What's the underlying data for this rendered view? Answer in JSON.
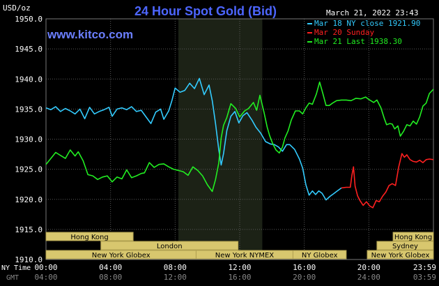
{
  "header": {
    "title": "24 Hour Spot Gold (Bid)",
    "unit": "USD/oz",
    "timestamp": "March 21, 2022 23:43",
    "watermark": "www.kitco.com"
  },
  "legend": [
    {
      "label": "Mar 18 NY close 1921.90",
      "color": "#33ccff"
    },
    {
      "label": "Mar 20 Sunday",
      "color": "#ff2020"
    },
    {
      "label": "Mar 21 Last 1938.30",
      "color": "#22ee22"
    }
  ],
  "markets": [
    {
      "name": "Hong Kong",
      "start": 0,
      "end": 5.4
    },
    {
      "name": "London",
      "start": 3.4,
      "end": 11.9
    },
    {
      "name": "New York Globex",
      "start": 0,
      "end": 9.3
    },
    {
      "name": "New York NYMEX",
      "start": 9.3,
      "end": 15.3
    },
    {
      "name": "NY Globex",
      "start": 15.3,
      "end": 18.6
    },
    {
      "name": "Hong Kong",
      "start": 21.5,
      "end": 24
    },
    {
      "name": "Sydney",
      "start": 20.5,
      "end": 24
    },
    {
      "name": "New York Globex",
      "start": 19.9,
      "end": 24
    }
  ],
  "axis_labels": {
    "ny_time": "NY Time",
    "gmt": "GMT"
  },
  "colors": {
    "background": "#000000",
    "plot_background": "#000000",
    "grid": "#5a5a5a",
    "nymex_shade": "#1c2216",
    "title": "#4d66ff",
    "watermark": "#6b7fff",
    "text": "#ffffff",
    "market_bar": "#d8c76e",
    "market_bar_border": "#b0a050"
  },
  "chart_data": {
    "type": "line",
    "title": "24 Hour Spot Gold (Bid)",
    "ylabel": "USD/oz",
    "xlim": [
      0,
      24
    ],
    "ylim": [
      1910,
      1950
    ],
    "y_ticks": [
      "1950.0",
      "1945.0",
      "1940.0",
      "1935.0",
      "1930.0",
      "1925.0",
      "1920.0",
      "1915.0",
      "1910.0"
    ],
    "x_ticks": {
      "ny": [
        "00:00",
        "04:00",
        "08:00",
        "12:00",
        "16:00",
        "20:00",
        "23:59"
      ],
      "gmt": [
        "04:00",
        "08:00",
        "12:00",
        "16:00",
        "20:00",
        "24:00",
        "03:59"
      ]
    },
    "shaded_region": [
      8.2,
      13.4
    ],
    "series": [
      {
        "name": "Mar 18 NY close 1921.90",
        "color": "#33ccff",
        "points": [
          [
            0,
            1935.2
          ],
          [
            0.3,
            1934.9
          ],
          [
            0.6,
            1935.4
          ],
          [
            0.9,
            1934.6
          ],
          [
            1.2,
            1935.1
          ],
          [
            1.5,
            1934.7
          ],
          [
            1.8,
            1934.2
          ],
          [
            2.1,
            1935.0
          ],
          [
            2.4,
            1933.4
          ],
          [
            2.7,
            1935.3
          ],
          [
            3.0,
            1934.2
          ],
          [
            3.3,
            1934.6
          ],
          [
            3.6,
            1934.9
          ],
          [
            3.9,
            1935.3
          ],
          [
            4.1,
            1933.8
          ],
          [
            4.4,
            1935.0
          ],
          [
            4.7,
            1935.2
          ],
          [
            5.0,
            1934.9
          ],
          [
            5.3,
            1935.4
          ],
          [
            5.6,
            1934.6
          ],
          [
            5.9,
            1934.8
          ],
          [
            6.2,
            1933.7
          ],
          [
            6.5,
            1932.6
          ],
          [
            6.8,
            1934.5
          ],
          [
            7.1,
            1935.0
          ],
          [
            7.3,
            1933.3
          ],
          [
            7.6,
            1934.7
          ],
          [
            7.8,
            1936.4
          ],
          [
            8.0,
            1938.5
          ],
          [
            8.3,
            1937.8
          ],
          [
            8.6,
            1938.1
          ],
          [
            8.9,
            1939.3
          ],
          [
            9.2,
            1938.4
          ],
          [
            9.5,
            1940.1
          ],
          [
            9.8,
            1937.4
          ],
          [
            10.1,
            1939.0
          ],
          [
            10.3,
            1936.4
          ],
          [
            10.5,
            1932.6
          ],
          [
            10.7,
            1928.3
          ],
          [
            10.85,
            1925.7
          ],
          [
            11.0,
            1927.6
          ],
          [
            11.2,
            1931.4
          ],
          [
            11.45,
            1933.8
          ],
          [
            11.7,
            1934.6
          ],
          [
            11.95,
            1932.7
          ],
          [
            12.2,
            1933.9
          ],
          [
            12.45,
            1934.4
          ],
          [
            12.75,
            1933.2
          ],
          [
            13.0,
            1932.0
          ],
          [
            13.3,
            1931.0
          ],
          [
            13.6,
            1929.6
          ],
          [
            13.9,
            1929.2
          ],
          [
            14.15,
            1929.1
          ],
          [
            14.4,
            1928.7
          ],
          [
            14.65,
            1928.0
          ],
          [
            14.9,
            1929.1
          ],
          [
            15.1,
            1929.1
          ],
          [
            15.4,
            1928.3
          ],
          [
            15.7,
            1926.7
          ],
          [
            15.9,
            1925.2
          ],
          [
            16.1,
            1922.4
          ],
          [
            16.3,
            1920.7
          ],
          [
            16.5,
            1921.4
          ],
          [
            16.7,
            1920.8
          ],
          [
            16.9,
            1921.4
          ],
          [
            17.1,
            1921.0
          ],
          [
            17.35,
            1919.9
          ],
          [
            17.6,
            1920.5
          ],
          [
            17.8,
            1920.9
          ],
          [
            18.0,
            1921.3
          ],
          [
            18.3,
            1921.9
          ]
        ]
      },
      {
        "name": "Mar 20 Sunday",
        "color": "#ff2020",
        "points": [
          [
            18.3,
            1921.9
          ],
          [
            18.6,
            1922.0
          ],
          [
            18.85,
            1922.0
          ],
          [
            18.95,
            1924.0
          ],
          [
            19.05,
            1925.4
          ],
          [
            19.15,
            1922.2
          ],
          [
            19.3,
            1920.6
          ],
          [
            19.45,
            1919.8
          ],
          [
            19.65,
            1919.0
          ],
          [
            19.85,
            1919.6
          ],
          [
            20.05,
            1918.9
          ],
          [
            20.25,
            1918.6
          ],
          [
            20.45,
            1919.8
          ],
          [
            20.65,
            1919.6
          ],
          [
            20.85,
            1920.5
          ],
          [
            21.05,
            1921.2
          ],
          [
            21.25,
            1922.3
          ],
          [
            21.45,
            1922.6
          ],
          [
            21.65,
            1922.3
          ],
          [
            21.85,
            1925.4
          ],
          [
            22.05,
            1927.6
          ],
          [
            22.2,
            1927.0
          ],
          [
            22.35,
            1927.4
          ],
          [
            22.55,
            1926.6
          ],
          [
            22.75,
            1926.3
          ],
          [
            22.95,
            1926.2
          ],
          [
            23.15,
            1926.5
          ],
          [
            23.35,
            1926.1
          ],
          [
            23.55,
            1926.6
          ],
          [
            23.75,
            1926.7
          ],
          [
            24.0,
            1926.6
          ]
        ]
      },
      {
        "name": "Mar 21 Last 1938.30",
        "color": "#22ee22",
        "points": [
          [
            0,
            1925.8
          ],
          [
            0.3,
            1926.8
          ],
          [
            0.6,
            1927.8
          ],
          [
            0.9,
            1927.3
          ],
          [
            1.2,
            1926.8
          ],
          [
            1.5,
            1928.2
          ],
          [
            1.8,
            1927.2
          ],
          [
            2.0,
            1927.9
          ],
          [
            2.3,
            1926.4
          ],
          [
            2.6,
            1924.1
          ],
          [
            2.9,
            1923.9
          ],
          [
            3.2,
            1923.3
          ],
          [
            3.5,
            1923.7
          ],
          [
            3.8,
            1923.9
          ],
          [
            4.1,
            1922.9
          ],
          [
            4.4,
            1923.7
          ],
          [
            4.7,
            1923.4
          ],
          [
            5.0,
            1924.9
          ],
          [
            5.3,
            1923.6
          ],
          [
            5.6,
            1923.9
          ],
          [
            5.9,
            1924.3
          ],
          [
            6.1,
            1924.4
          ],
          [
            6.4,
            1926.1
          ],
          [
            6.7,
            1925.3
          ],
          [
            7.0,
            1925.8
          ],
          [
            7.3,
            1925.9
          ],
          [
            7.6,
            1925.4
          ],
          [
            7.9,
            1925.0
          ],
          [
            8.2,
            1924.8
          ],
          [
            8.5,
            1924.6
          ],
          [
            8.8,
            1924.0
          ],
          [
            9.1,
            1925.4
          ],
          [
            9.4,
            1924.8
          ],
          [
            9.7,
            1923.9
          ],
          [
            10.0,
            1922.4
          ],
          [
            10.3,
            1921.3
          ],
          [
            10.5,
            1923.3
          ],
          [
            10.7,
            1926.0
          ],
          [
            10.85,
            1930.2
          ],
          [
            11.0,
            1932.3
          ],
          [
            11.2,
            1933.6
          ],
          [
            11.45,
            1935.9
          ],
          [
            11.75,
            1935.1
          ],
          [
            12.0,
            1933.7
          ],
          [
            12.3,
            1934.7
          ],
          [
            12.55,
            1935.1
          ],
          [
            12.85,
            1936.1
          ],
          [
            13.05,
            1934.8
          ],
          [
            13.25,
            1937.3
          ],
          [
            13.5,
            1934.5
          ],
          [
            13.7,
            1932.0
          ],
          [
            13.85,
            1930.6
          ],
          [
            14.05,
            1929.2
          ],
          [
            14.25,
            1928.2
          ],
          [
            14.45,
            1927.7
          ],
          [
            14.65,
            1928.7
          ],
          [
            14.8,
            1930.2
          ],
          [
            15.0,
            1931.4
          ],
          [
            15.2,
            1933.2
          ],
          [
            15.45,
            1934.7
          ],
          [
            15.7,
            1934.7
          ],
          [
            15.9,
            1934.2
          ],
          [
            16.1,
            1935.2
          ],
          [
            16.3,
            1936.0
          ],
          [
            16.5,
            1935.8
          ],
          [
            16.75,
            1937.5
          ],
          [
            16.95,
            1939.5
          ],
          [
            17.15,
            1937.6
          ],
          [
            17.35,
            1935.6
          ],
          [
            17.55,
            1935.6
          ],
          [
            17.75,
            1936.0
          ],
          [
            18.0,
            1936.4
          ],
          [
            18.3,
            1936.5
          ],
          [
            18.6,
            1936.5
          ],
          [
            18.9,
            1936.4
          ],
          [
            19.2,
            1936.8
          ],
          [
            19.5,
            1936.7
          ],
          [
            19.8,
            1937.0
          ],
          [
            20.0,
            1936.6
          ],
          [
            20.3,
            1936.1
          ],
          [
            20.5,
            1936.5
          ],
          [
            20.75,
            1935.2
          ],
          [
            20.95,
            1933.5
          ],
          [
            21.1,
            1932.4
          ],
          [
            21.3,
            1932.6
          ],
          [
            21.45,
            1932.5
          ],
          [
            21.6,
            1931.7
          ],
          [
            21.8,
            1932.2
          ],
          [
            21.95,
            1930.5
          ],
          [
            22.15,
            1931.3
          ],
          [
            22.35,
            1932.4
          ],
          [
            22.55,
            1932.2
          ],
          [
            22.75,
            1933.0
          ],
          [
            22.95,
            1932.5
          ],
          [
            23.15,
            1933.7
          ],
          [
            23.35,
            1935.5
          ],
          [
            23.55,
            1936.0
          ],
          [
            23.75,
            1937.6
          ],
          [
            24.0,
            1938.3
          ]
        ]
      }
    ]
  }
}
